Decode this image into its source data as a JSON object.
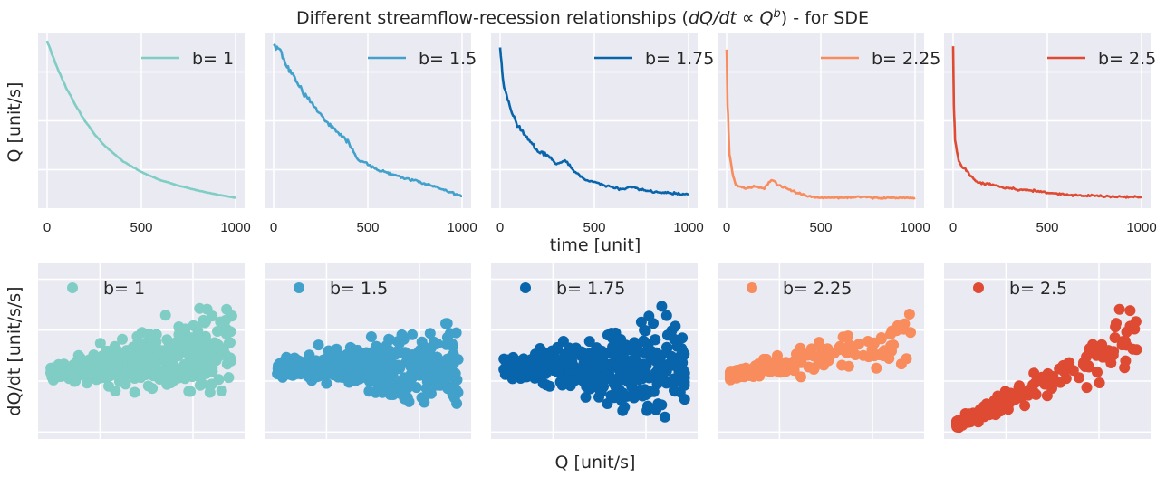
{
  "chart_data": {
    "title_prefix": "Different streamflow-recession relationships (",
    "title_math": "dQ/dt ∝ Q",
    "title_exponent": "b",
    "title_suffix": ") - for SDE",
    "top_row": {
      "type": "line",
      "xlabel": "time [unit]",
      "ylabel": "Q [unit/s]",
      "x_ticks": [
        "0",
        "500",
        "1000"
      ],
      "xlim": [
        0,
        1000
      ]
    },
    "bottom_row": {
      "type": "scatter",
      "xlabel": "Q [unit/s]",
      "ylabel": "dQ/dt [unit/s/s]"
    },
    "series": [
      {
        "name": "b= 1",
        "b": 1,
        "color": "#7fcdc4",
        "line": [
          [
            0,
            1.0
          ],
          [
            50,
            0.84
          ],
          [
            100,
            0.71
          ],
          [
            150,
            0.6
          ],
          [
            200,
            0.5
          ],
          [
            250,
            0.42
          ],
          [
            300,
            0.35
          ],
          [
            400,
            0.25
          ],
          [
            500,
            0.18
          ],
          [
            600,
            0.13
          ],
          [
            700,
            0.095
          ],
          [
            800,
            0.065
          ],
          [
            900,
            0.04
          ],
          [
            1000,
            0.02
          ]
        ]
      },
      {
        "name": "b= 1.5",
        "b": 1.5,
        "color": "#41a1cb",
        "line": [
          [
            0,
            0.97
          ],
          [
            30,
            0.95
          ],
          [
            60,
            0.86
          ],
          [
            100,
            0.78
          ],
          [
            150,
            0.69
          ],
          [
            200,
            0.62
          ],
          [
            250,
            0.54
          ],
          [
            300,
            0.47
          ],
          [
            350,
            0.42
          ],
          [
            400,
            0.36
          ],
          [
            450,
            0.25
          ],
          [
            500,
            0.23
          ],
          [
            550,
            0.19
          ],
          [
            600,
            0.18
          ],
          [
            700,
            0.14
          ],
          [
            800,
            0.11
          ],
          [
            900,
            0.07
          ],
          [
            1000,
            0.03
          ]
        ]
      },
      {
        "name": "b= 1.75",
        "b": 1.75,
        "color": "#0865ac",
        "line": [
          [
            0,
            0.95
          ],
          [
            15,
            0.75
          ],
          [
            40,
            0.62
          ],
          [
            80,
            0.5
          ],
          [
            120,
            0.43
          ],
          [
            160,
            0.37
          ],
          [
            200,
            0.31
          ],
          [
            250,
            0.29
          ],
          [
            300,
            0.23
          ],
          [
            350,
            0.25
          ],
          [
            400,
            0.18
          ],
          [
            450,
            0.13
          ],
          [
            500,
            0.12
          ],
          [
            550,
            0.1
          ],
          [
            600,
            0.085
          ],
          [
            650,
            0.07
          ],
          [
            700,
            0.09
          ],
          [
            750,
            0.07
          ],
          [
            800,
            0.06
          ],
          [
            900,
            0.05
          ],
          [
            1000,
            0.04
          ]
        ]
      },
      {
        "name": "b= 2.25",
        "b": 2.25,
        "color": "#f88c5c",
        "line": [
          [
            0,
            0.95
          ],
          [
            5,
            0.6
          ],
          [
            15,
            0.3
          ],
          [
            30,
            0.18
          ],
          [
            50,
            0.1
          ],
          [
            100,
            0.08
          ],
          [
            150,
            0.09
          ],
          [
            200,
            0.08
          ],
          [
            230,
            0.12
          ],
          [
            250,
            0.13
          ],
          [
            270,
            0.1
          ],
          [
            300,
            0.09
          ],
          [
            350,
            0.06
          ],
          [
            400,
            0.04
          ],
          [
            450,
            0.025
          ],
          [
            500,
            0.02
          ],
          [
            600,
            0.02
          ],
          [
            700,
            0.025
          ],
          [
            800,
            0.02
          ],
          [
            1000,
            0.02
          ]
        ]
      },
      {
        "name": "b= 2.5",
        "b": 2.5,
        "color": "#df4a32",
        "line": [
          [
            0,
            0.97
          ],
          [
            4,
            0.6
          ],
          [
            10,
            0.38
          ],
          [
            30,
            0.25
          ],
          [
            60,
            0.2
          ],
          [
            80,
            0.18
          ],
          [
            120,
            0.12
          ],
          [
            200,
            0.1
          ],
          [
            300,
            0.08
          ],
          [
            350,
            0.07
          ],
          [
            400,
            0.07
          ],
          [
            500,
            0.05
          ],
          [
            600,
            0.04
          ],
          [
            700,
            0.035
          ],
          [
            800,
            0.03
          ],
          [
            900,
            0.025
          ],
          [
            1000,
            0.025
          ]
        ]
      }
    ]
  }
}
